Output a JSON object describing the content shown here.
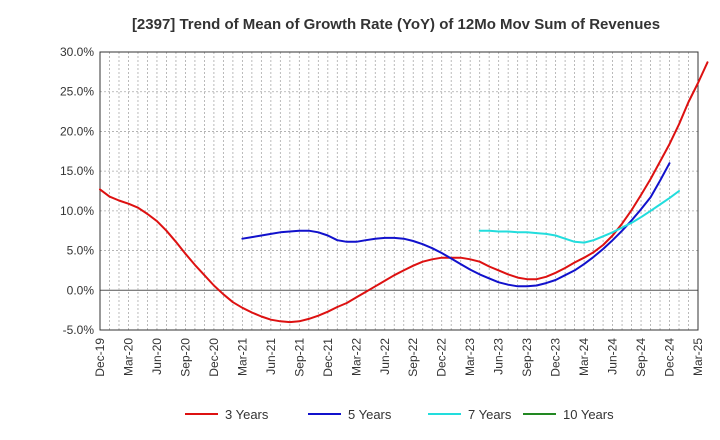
{
  "chart_data": {
    "type": "line",
    "title": "[2397]  Trend of Mean of Growth Rate (YoY) of 12Mo Mov Sum of Revenues",
    "xlabel": "",
    "ylabel": "",
    "ylim": [
      -5,
      30
    ],
    "y_ticks": [
      -5,
      0,
      5,
      10,
      15,
      20,
      25,
      30
    ],
    "y_tick_labels": [
      "-5.0%",
      "0.0%",
      "5.0%",
      "10.0%",
      "15.0%",
      "20.0%",
      "25.0%",
      "30.0%"
    ],
    "x_tick_labels": [
      "Dec-19",
      "Mar-20",
      "Jun-20",
      "Sep-20",
      "Dec-20",
      "Mar-21",
      "Jun-21",
      "Sep-21",
      "Dec-21",
      "Mar-22",
      "Jun-22",
      "Sep-22",
      "Dec-22",
      "Mar-23",
      "Jun-23",
      "Sep-23",
      "Dec-23",
      "Mar-24",
      "Jun-24",
      "Sep-24",
      "Dec-24",
      "Mar-25"
    ],
    "x_start": "Dec-19",
    "months_span": 63,
    "grid": true,
    "legend_position": "bottom",
    "series": [
      {
        "name": "3 Years",
        "color": "#dd1111",
        "start_month_index": 0,
        "values": [
          12.7,
          11.8,
          11.3,
          10.9,
          10.4,
          9.6,
          8.7,
          7.5,
          6.1,
          4.6,
          3.2,
          1.9,
          0.6,
          -0.5,
          -1.5,
          -2.2,
          -2.8,
          -3.3,
          -3.7,
          -3.9,
          -4.0,
          -3.9,
          -3.6,
          -3.2,
          -2.7,
          -2.1,
          -1.6,
          -0.9,
          -0.2,
          0.5,
          1.2,
          1.9,
          2.5,
          3.1,
          3.6,
          3.9,
          4.1,
          4.1,
          4.1,
          3.9,
          3.6,
          3.0,
          2.5,
          2.0,
          1.6,
          1.4,
          1.4,
          1.7,
          2.2,
          2.8,
          3.5,
          4.1,
          4.8,
          5.7,
          6.9,
          8.4,
          10.1,
          12.0,
          14.0,
          16.2,
          18.4,
          20.9,
          23.7,
          26.1,
          28.7
        ]
      },
      {
        "name": "5 Years",
        "color": "#1111cc",
        "start_month_index": 15,
        "values": [
          6.5,
          6.7,
          6.9,
          7.1,
          7.3,
          7.4,
          7.5,
          7.5,
          7.3,
          6.9,
          6.3,
          6.1,
          6.1,
          6.3,
          6.5,
          6.6,
          6.6,
          6.5,
          6.2,
          5.8,
          5.3,
          4.7,
          4.0,
          3.3,
          2.6,
          2.0,
          1.5,
          1.0,
          0.7,
          0.5,
          0.5,
          0.6,
          0.9,
          1.3,
          1.9,
          2.5,
          3.3,
          4.2,
          5.2,
          6.3,
          7.5,
          8.8,
          10.2,
          11.7,
          13.8,
          16.0
        ]
      },
      {
        "name": "7 Years",
        "color": "#22dddd",
        "start_month_index": 40,
        "values": [
          7.5,
          7.5,
          7.4,
          7.4,
          7.3,
          7.3,
          7.2,
          7.1,
          6.9,
          6.5,
          6.1,
          6.0,
          6.3,
          6.8,
          7.3,
          7.9,
          8.5,
          9.2,
          10.0,
          10.8,
          11.6,
          12.5
        ]
      },
      {
        "name": "10 Years",
        "color": "#228822",
        "start_month_index": 0,
        "values": []
      }
    ]
  }
}
